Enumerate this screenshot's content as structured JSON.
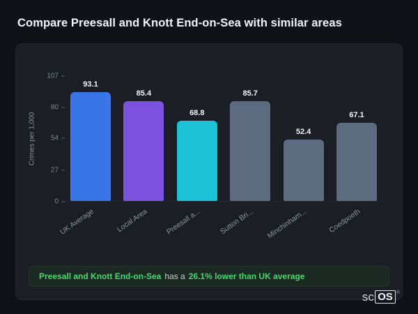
{
  "page_title": "Compare Preesall and Knott End-on-Sea with similar areas",
  "chart_data": {
    "type": "bar",
    "categories": [
      "UK Average",
      "Local Area",
      "Preesall a...",
      "Sutton Bri...",
      "Minchinham...",
      "Coedpoeth"
    ],
    "values": [
      93.1,
      85.4,
      68.8,
      85.7,
      52.4,
      67.1
    ],
    "value_labels": [
      "93.1",
      "85.4",
      "68.8",
      "85.7",
      "52.4",
      "67.1"
    ],
    "bar_colors": [
      "#3b76e8",
      "#7c52e0",
      "#1bc2d6",
      "#5d6b7f",
      "#5d6b7f",
      "#5d6b7f"
    ],
    "title": "",
    "xlabel": "",
    "ylabel": "Crimes per 1,000",
    "yticks": [
      0,
      27,
      54,
      80,
      107
    ],
    "ylim": [
      0,
      107
    ],
    "grid": false,
    "legend": false
  },
  "summary": {
    "area_name": "Preesall and Knott End-on-Sea",
    "connector": "has a",
    "stat_text": "26.1% lower than UK average",
    "accent_color": "#43d672"
  },
  "logo": {
    "prefix": "sc",
    "suffix": "OS",
    "registered_mark": "®"
  }
}
